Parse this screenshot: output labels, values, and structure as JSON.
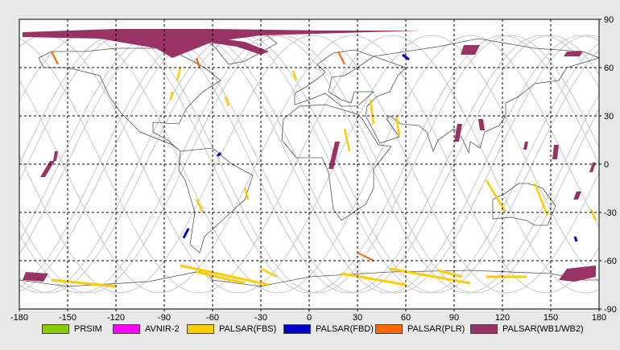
{
  "map": {
    "x_ticks": [
      "-180",
      "-150",
      "-120",
      "-90",
      "-60",
      "-30",
      "0",
      "30",
      "60",
      "90",
      "120",
      "150",
      "180"
    ],
    "y_ticks_right": [
      "90",
      "60",
      "30",
      "0",
      "-30",
      "-60",
      "-90"
    ],
    "lon_range": [
      -180,
      180
    ],
    "lat_range": [
      -90,
      90
    ],
    "grid": "dashed",
    "colors": {
      "background": "#ffffff",
      "coastline": "#555555",
      "orbit": "#c8c8c8",
      "PRSIM": "#88cc00",
      "AVNIR": "#ff00ff",
      "FBS": "#ffcc00",
      "FBD": "#0000cc",
      "PLR": "#ff6600",
      "WB": "#993366"
    }
  },
  "legend": [
    {
      "label": "PRSIM",
      "color": "#88cc00"
    },
    {
      "label": "AVNIR-2",
      "color": "#ff00ff"
    },
    {
      "label": "PALSAR(FBS)",
      "color": "#ffcc00"
    },
    {
      "label": "PALSAR(FBD)",
      "color": "#0000cc"
    },
    {
      "label": "PALSAR(PLR)",
      "color": "#ff6600"
    },
    {
      "label": "PALSAR(WB1/WB2)",
      "color": "#993366"
    }
  ]
}
